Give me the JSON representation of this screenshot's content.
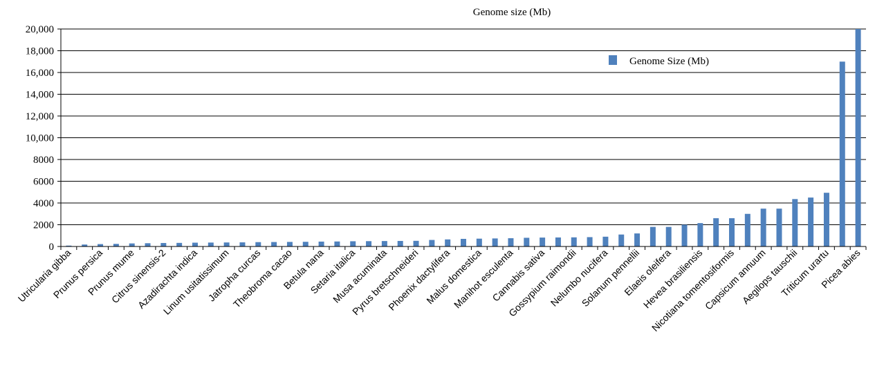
{
  "chart_data": {
    "type": "bar",
    "title": "Genome size (Mb)",
    "xlabel": "",
    "ylabel": "",
    "ylim": [
      0,
      20000
    ],
    "yticks": [
      0,
      2000,
      4000,
      6000,
      8000,
      10000,
      12000,
      14000,
      16000,
      18000,
      20000
    ],
    "ytick_labels": [
      "0",
      "2000",
      "4000",
      "6000",
      "8000",
      "10,000",
      "12,000",
      "14,000",
      "16,000",
      "18,000",
      "20,000"
    ],
    "grid": true,
    "legend_position": "top-right",
    "series": [
      {
        "name": "Genome Size (Mb)",
        "color": "#4f81bd",
        "values": [
          80,
          180,
          220,
          240,
          280,
          300,
          320,
          330,
          350,
          360,
          370,
          380,
          400,
          410,
          420,
          430,
          450,
          460,
          480,
          490,
          500,
          510,
          520,
          600,
          650,
          700,
          720,
          740,
          760,
          800,
          820,
          830,
          840,
          860,
          900,
          1100,
          1200,
          1800,
          1800,
          2000,
          2150,
          2600,
          2600,
          3000,
          3480,
          3480,
          4360,
          4500,
          4940,
          17000,
          20000
        ]
      }
    ],
    "categories": [
      "Utricularia gibba",
      "",
      "Prunus persica",
      "",
      "Prunus mume",
      "",
      "Citrus sinensis-2",
      "",
      "Azadirachta indica",
      "",
      "Linum usitatissimum",
      "",
      "Jatropha curcas",
      "",
      "Theobroma cacao",
      "",
      "Betula nana",
      "",
      "Setaria italica",
      "",
      "Musa acuminata",
      "",
      "Pyrus bretschneideri",
      "",
      "Phoenix dactylifera",
      "",
      "Malus domestica",
      "",
      "Manihot esculenta",
      "",
      "Cannabis sativa",
      "",
      "Gossypium raimondii",
      "",
      "Nelumbo nucifera",
      "",
      "Solanum pennellii",
      "",
      "Elaeis oleifera",
      "",
      "Hevea brasiliensis",
      "",
      "Nicotiana tomentosiformis",
      "",
      "Capsicum annuum",
      "",
      "Aegilops tauschii",
      "",
      "Triticum urartu",
      "",
      "Picea abies"
    ]
  }
}
